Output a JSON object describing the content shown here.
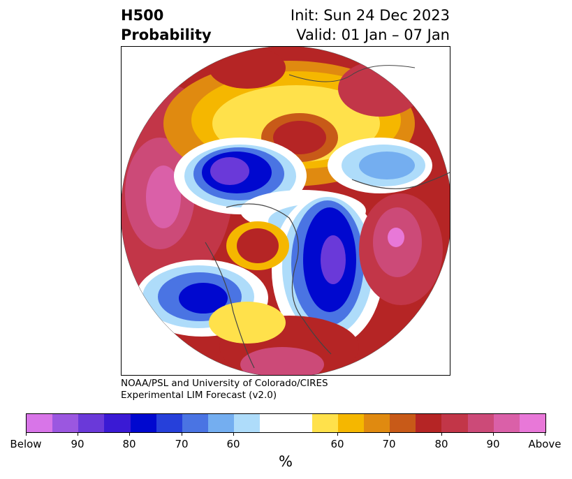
{
  "title": {
    "left_line1": "H500",
    "left_line2": "Probability",
    "right_line1": "Init: Sun 24 Dec 2023",
    "right_line2": "Valid: 01 Jan – 07 Jan"
  },
  "credit": {
    "line1": "NOAA/PSL and University of Colorado/CIRES",
    "line2": "Experimental LIM Forecast (v2.0)"
  },
  "colorbar": {
    "colors": [
      "#d875e8",
      "#9b57e0",
      "#6a39d9",
      "#3a1ad4",
      "#0008cf",
      "#2640da",
      "#4a74e3",
      "#74aef0",
      "#aedcfa",
      "#ffffff",
      "#ffe14b",
      "#f5b700",
      "#e08a10",
      "#c85a18",
      "#b52525",
      "#c23648",
      "#cc4a78",
      "#da60a8",
      "#e878d8"
    ],
    "tick_labels": [
      "Below",
      "90",
      "80",
      "70",
      "60",
      "60",
      "70",
      "80",
      "90",
      "Above"
    ],
    "unit": "%"
  }
}
